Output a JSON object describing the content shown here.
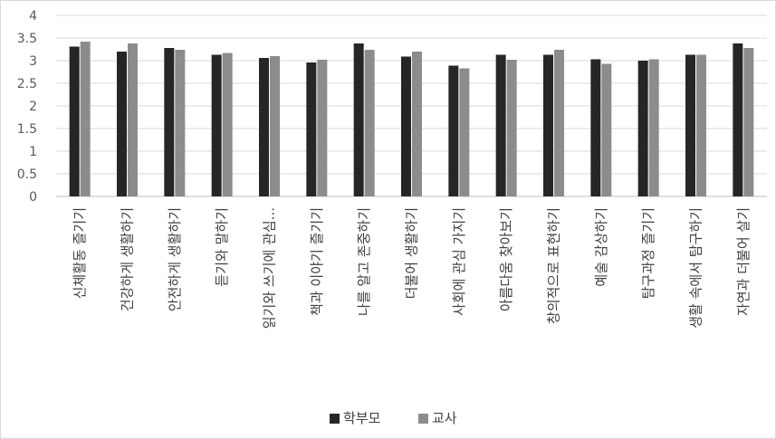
{
  "chart_data": {
    "type": "bar",
    "categories": [
      "신체활동 즐기기",
      "건강하게 생활하기",
      "안전하게 생활하기",
      "듣기와 말하기",
      "읽기와 쓰기에 관심...",
      "책과 이야기 즐기기",
      "나를 알고 존중하기",
      "더불어 생활하기",
      "사회에 관심 가지기",
      "아름다움 찾아보기",
      "창의적으로 표현하기",
      "예술 감상하기",
      "탐구과정 즐기기",
      "생활 속에서 탐구하기",
      "자연과 더불어 살기"
    ],
    "series": [
      {
        "name": "학부모",
        "color": "#262626",
        "values": [
          3.31,
          3.2,
          3.28,
          3.13,
          3.06,
          2.96,
          3.38,
          3.09,
          2.89,
          3.13,
          3.13,
          3.03,
          3.0,
          3.13,
          3.38
        ]
      },
      {
        "name": "교사",
        "color": "#8c8c8c",
        "values": [
          3.42,
          3.38,
          3.24,
          3.17,
          3.1,
          3.02,
          3.24,
          3.2,
          2.83,
          3.02,
          3.24,
          2.93,
          3.03,
          3.13,
          3.28
        ]
      }
    ],
    "ylim": [
      0,
      4
    ],
    "yticks": [
      "0",
      "0.5",
      "1",
      "1.5",
      "2",
      "2.5",
      "3",
      "3.5",
      "4"
    ],
    "grid": true,
    "legend": "bottom"
  }
}
